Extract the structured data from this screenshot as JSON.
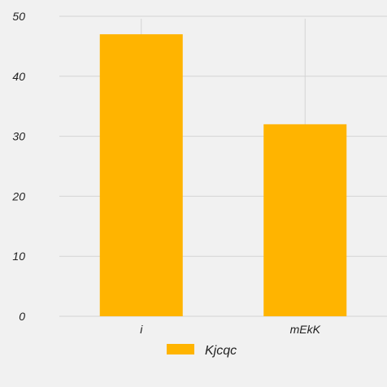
{
  "chart_data": {
    "type": "bar",
    "categories": [
      "i",
      "mEkK"
    ],
    "series": [
      {
        "name": "Kjcqc",
        "values": [
          47,
          32
        ],
        "color": "#ffb400"
      }
    ],
    "ylim": [
      0,
      50
    ],
    "yticks": [
      0,
      10,
      20,
      30,
      40,
      50
    ],
    "grid": true,
    "legend": "bottom-center",
    "background": "#f1f1f1",
    "grid_color": "#d4d4d4"
  }
}
